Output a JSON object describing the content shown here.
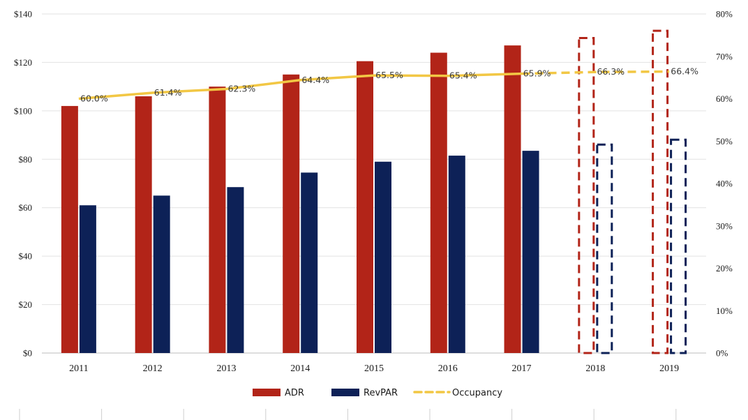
{
  "chart_data": {
    "type": "bar",
    "categories": [
      "2011",
      "2012",
      "2013",
      "2014",
      "2015",
      "2016",
      "2017",
      "2018",
      "2019"
    ],
    "forecast_categories": [
      "2018",
      "2019"
    ],
    "series": [
      {
        "name": "ADR",
        "axis": "left",
        "values": [
          102,
          106,
          110,
          115,
          120.5,
          124,
          127,
          130.5,
          133.5
        ],
        "color": "#b22418"
      },
      {
        "name": "RevPAR",
        "axis": "left",
        "values": [
          61,
          65,
          68.5,
          74.5,
          79,
          81.5,
          83.5,
          86.5,
          88.5
        ],
        "color": "#0d2157"
      },
      {
        "name": "Occupancy",
        "axis": "right",
        "type": "line",
        "values": [
          60.0,
          61.4,
          62.3,
          64.4,
          65.5,
          65.4,
          65.9,
          66.3,
          66.4
        ],
        "labels": [
          "60.0%",
          "61.4%",
          "62.3%",
          "64.4%",
          "65.5%",
          "65.4%",
          "65.9%",
          "66.3%",
          "66.4%"
        ],
        "color": "#f2c744"
      }
    ],
    "left_axis": {
      "min": 0,
      "max": 140,
      "step": 20,
      "ticks": [
        "$0",
        "$20",
        "$40",
        "$60",
        "$80",
        "$100",
        "$120",
        "$140"
      ]
    },
    "right_axis": {
      "min": 0,
      "max": 80,
      "step": 10,
      "ticks": [
        "0%",
        "10%",
        "20%",
        "30%",
        "40%",
        "50%",
        "60%",
        "70%",
        "80%"
      ]
    },
    "legend": {
      "position": "bottom",
      "entries": [
        "ADR",
        "RevPAR",
        "Occupancy"
      ]
    },
    "title": "",
    "xlabel": "",
    "ylabel": "",
    "y2label": ""
  }
}
